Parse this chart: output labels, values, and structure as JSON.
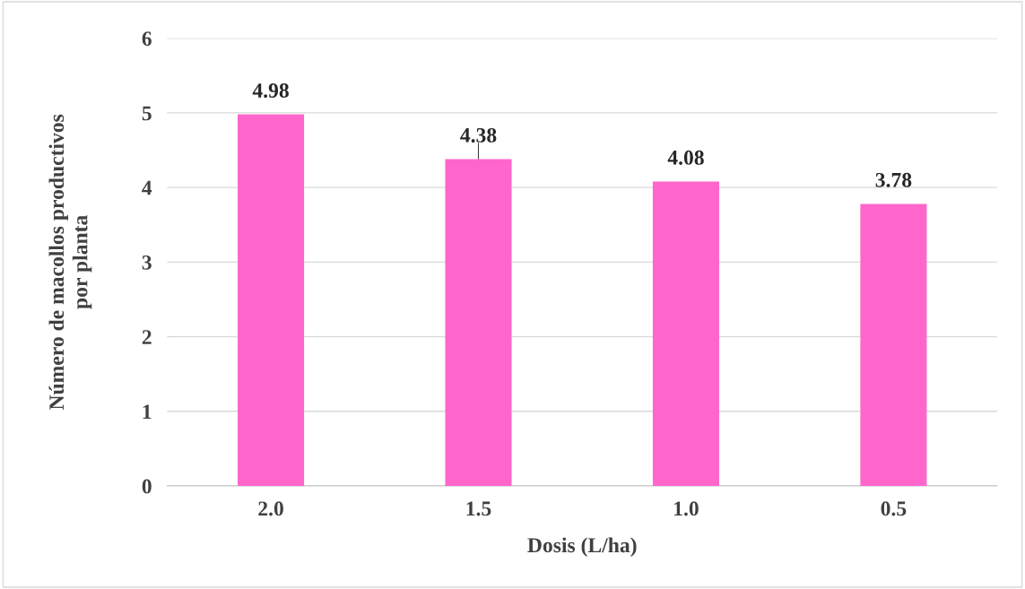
{
  "chart_data": {
    "type": "bar",
    "xlabel": "Dosis (L/ha)",
    "ylabel": "Número de macollos productivos\npor planta",
    "categories": [
      "2.0",
      "1.5",
      "1.0",
      "0.5"
    ],
    "values": [
      4.98,
      4.38,
      4.08,
      3.78
    ],
    "errors": [
      null,
      0.22,
      null,
      null
    ],
    "color": "#ff66cc",
    "data_labels": true,
    "ylim": [
      0,
      6
    ],
    "yticks": [
      0,
      1,
      2,
      3,
      4,
      5,
      6
    ],
    "grid": "y"
  }
}
